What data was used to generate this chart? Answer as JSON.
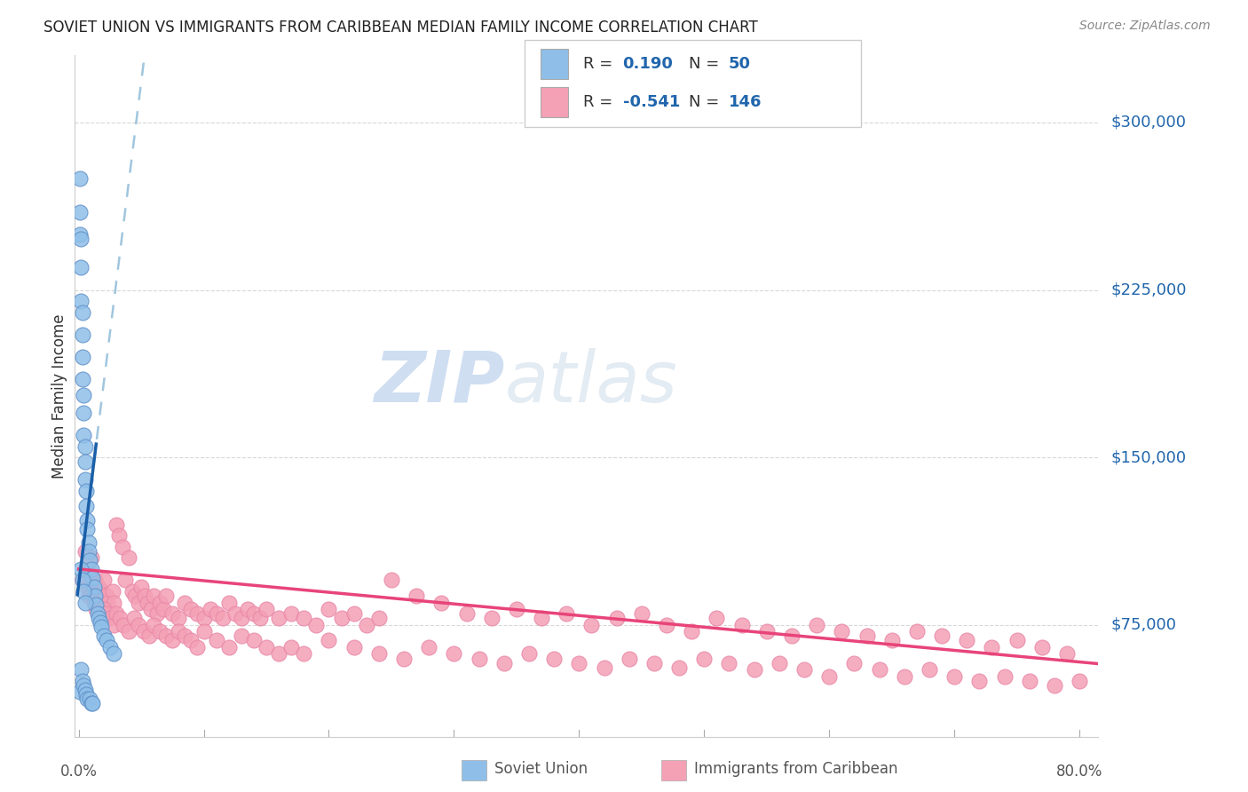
{
  "title": "SOVIET UNION VS IMMIGRANTS FROM CARIBBEAN MEDIAN FAMILY INCOME CORRELATION CHART",
  "source": "Source: ZipAtlas.com",
  "ylabel": "Median Family Income",
  "ytick_labels": [
    "$75,000",
    "$150,000",
    "$225,000",
    "$300,000"
  ],
  "ytick_values": [
    75000,
    150000,
    225000,
    300000
  ],
  "ymin": 25000,
  "ymax": 330000,
  "xmin": -0.003,
  "xmax": 0.815,
  "color_blue": "#8fbfe8",
  "color_pink": "#f4a0b5",
  "color_blue_line": "#1a5fa8",
  "color_pink_line": "#e8447a",
  "color_blue_text": "#2166ac",
  "color_dashed_blue": "#90bcd8",
  "grid_color": "#d8d8d8",
  "bottom_spine_color": "#cccccc",
  "soviet_x": [
    0.001,
    0.001,
    0.001,
    0.001,
    0.002,
    0.002,
    0.002,
    0.002,
    0.003,
    0.003,
    0.003,
    0.003,
    0.003,
    0.004,
    0.004,
    0.004,
    0.004,
    0.005,
    0.005,
    0.005,
    0.005,
    0.006,
    0.006,
    0.006,
    0.007,
    0.007,
    0.007,
    0.008,
    0.008,
    0.009,
    0.009,
    0.01,
    0.01,
    0.011,
    0.011,
    0.012,
    0.013,
    0.014,
    0.015,
    0.016,
    0.017,
    0.018,
    0.02,
    0.022,
    0.025,
    0.028,
    0.002,
    0.003,
    0.004,
    0.005
  ],
  "soviet_y": [
    275000,
    260000,
    250000,
    45000,
    248000,
    235000,
    220000,
    55000,
    215000,
    205000,
    195000,
    185000,
    50000,
    178000,
    170000,
    160000,
    48000,
    155000,
    148000,
    140000,
    46000,
    135000,
    128000,
    44000,
    122000,
    118000,
    42000,
    112000,
    108000,
    104000,
    42000,
    100000,
    40000,
    96000,
    40000,
    92000,
    88000,
    84000,
    80000,
    78000,
    76000,
    74000,
    70000,
    68000,
    65000,
    62000,
    100000,
    95000,
    90000,
    85000
  ],
  "caribbean_x": [
    0.003,
    0.005,
    0.007,
    0.008,
    0.009,
    0.01,
    0.011,
    0.012,
    0.013,
    0.014,
    0.015,
    0.016,
    0.017,
    0.018,
    0.019,
    0.02,
    0.021,
    0.022,
    0.023,
    0.025,
    0.027,
    0.028,
    0.03,
    0.032,
    0.035,
    0.037,
    0.04,
    0.043,
    0.045,
    0.048,
    0.05,
    0.053,
    0.055,
    0.058,
    0.06,
    0.063,
    0.065,
    0.068,
    0.07,
    0.075,
    0.08,
    0.085,
    0.09,
    0.095,
    0.1,
    0.105,
    0.11,
    0.115,
    0.12,
    0.125,
    0.13,
    0.135,
    0.14,
    0.145,
    0.15,
    0.16,
    0.17,
    0.18,
    0.19,
    0.2,
    0.21,
    0.22,
    0.23,
    0.24,
    0.25,
    0.27,
    0.29,
    0.31,
    0.33,
    0.35,
    0.37,
    0.39,
    0.41,
    0.43,
    0.45,
    0.47,
    0.49,
    0.51,
    0.53,
    0.55,
    0.57,
    0.59,
    0.61,
    0.63,
    0.65,
    0.67,
    0.69,
    0.71,
    0.73,
    0.75,
    0.77,
    0.79,
    0.005,
    0.008,
    0.01,
    0.012,
    0.014,
    0.016,
    0.018,
    0.02,
    0.022,
    0.025,
    0.028,
    0.03,
    0.033,
    0.036,
    0.04,
    0.044,
    0.048,
    0.052,
    0.056,
    0.06,
    0.065,
    0.07,
    0.075,
    0.08,
    0.085,
    0.09,
    0.095,
    0.1,
    0.11,
    0.12,
    0.13,
    0.14,
    0.15,
    0.16,
    0.17,
    0.18,
    0.2,
    0.22,
    0.24,
    0.26,
    0.28,
    0.3,
    0.32,
    0.34,
    0.36,
    0.38,
    0.4,
    0.42,
    0.44,
    0.46,
    0.48,
    0.5,
    0.52,
    0.54,
    0.56,
    0.58,
    0.6,
    0.62,
    0.64,
    0.66,
    0.68,
    0.7,
    0.72,
    0.74,
    0.76,
    0.78,
    0.8
  ],
  "caribbean_y": [
    95000,
    100000,
    92000,
    88000,
    98000,
    105000,
    92000,
    88000,
    95000,
    90000,
    85000,
    92000,
    88000,
    85000,
    90000,
    95000,
    82000,
    88000,
    85000,
    80000,
    90000,
    85000,
    120000,
    115000,
    110000,
    95000,
    105000,
    90000,
    88000,
    85000,
    92000,
    88000,
    85000,
    82000,
    88000,
    80000,
    85000,
    82000,
    88000,
    80000,
    78000,
    85000,
    82000,
    80000,
    78000,
    82000,
    80000,
    78000,
    85000,
    80000,
    78000,
    82000,
    80000,
    78000,
    82000,
    78000,
    80000,
    78000,
    75000,
    82000,
    78000,
    80000,
    75000,
    78000,
    95000,
    88000,
    85000,
    80000,
    78000,
    82000,
    78000,
    80000,
    75000,
    78000,
    80000,
    75000,
    72000,
    78000,
    75000,
    72000,
    70000,
    75000,
    72000,
    70000,
    68000,
    72000,
    70000,
    68000,
    65000,
    68000,
    65000,
    62000,
    108000,
    100000,
    88000,
    85000,
    82000,
    80000,
    78000,
    82000,
    80000,
    78000,
    75000,
    80000,
    78000,
    75000,
    72000,
    78000,
    75000,
    72000,
    70000,
    75000,
    72000,
    70000,
    68000,
    72000,
    70000,
    68000,
    65000,
    72000,
    68000,
    65000,
    70000,
    68000,
    65000,
    62000,
    65000,
    62000,
    68000,
    65000,
    62000,
    60000,
    65000,
    62000,
    60000,
    58000,
    62000,
    60000,
    58000,
    56000,
    60000,
    58000,
    56000,
    60000,
    58000,
    55000,
    58000,
    55000,
    52000,
    58000,
    55000,
    52000,
    55000,
    52000,
    50000,
    52000,
    50000,
    48000,
    50000
  ]
}
